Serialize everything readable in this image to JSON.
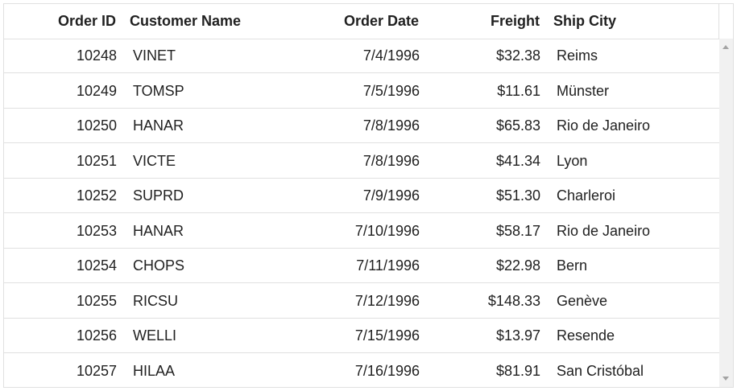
{
  "columns": {
    "order_id": "Order ID",
    "customer_name": "Customer Name",
    "order_date": "Order Date",
    "freight": "Freight",
    "ship_city": "Ship City"
  },
  "rows": [
    {
      "order_id": "10248",
      "customer": "VINET",
      "date": "7/4/1996",
      "freight": "$32.38",
      "city": "Reims"
    },
    {
      "order_id": "10249",
      "customer": "TOMSP",
      "date": "7/5/1996",
      "freight": "$11.61",
      "city": "Münster"
    },
    {
      "order_id": "10250",
      "customer": "HANAR",
      "date": "7/8/1996",
      "freight": "$65.83",
      "city": "Rio de Janeiro"
    },
    {
      "order_id": "10251",
      "customer": "VICTE",
      "date": "7/8/1996",
      "freight": "$41.34",
      "city": "Lyon"
    },
    {
      "order_id": "10252",
      "customer": "SUPRD",
      "date": "7/9/1996",
      "freight": "$51.30",
      "city": "Charleroi"
    },
    {
      "order_id": "10253",
      "customer": "HANAR",
      "date": "7/10/1996",
      "freight": "$58.17",
      "city": "Rio de Janeiro"
    },
    {
      "order_id": "10254",
      "customer": "CHOPS",
      "date": "7/11/1996",
      "freight": "$22.98",
      "city": "Bern"
    },
    {
      "order_id": "10255",
      "customer": "RICSU",
      "date": "7/12/1996",
      "freight": "$148.33",
      "city": "Genève"
    },
    {
      "order_id": "10256",
      "customer": "WELLI",
      "date": "7/15/1996",
      "freight": "$13.97",
      "city": "Resende"
    },
    {
      "order_id": "10257",
      "customer": "HILAA",
      "date": "7/16/1996",
      "freight": "$81.91",
      "city": "San Cristóbal"
    }
  ],
  "icons": {
    "scroll_up": "scroll-up-arrow-icon",
    "scroll_down": "scroll-down-arrow-icon"
  }
}
